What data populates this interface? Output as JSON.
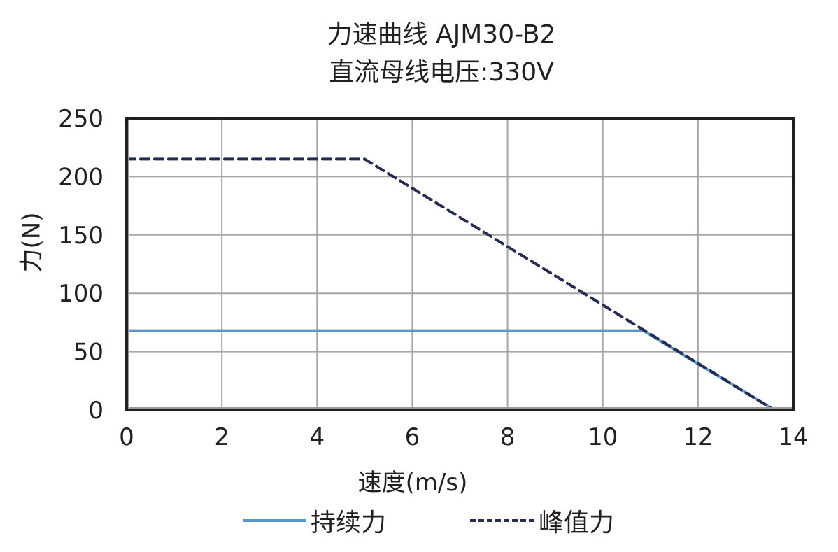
{
  "chart_data": {
    "type": "line",
    "title": "力速曲线 AJM30-B2",
    "subtitle": "直流母线电压:330V",
    "xlabel": "速度(m/s)",
    "ylabel": "力(N)",
    "xlim": [
      0,
      14
    ],
    "ylim": [
      0,
      250
    ],
    "x_ticks": [
      "0",
      "2",
      "4",
      "6",
      "8",
      "10",
      "12",
      "14"
    ],
    "y_ticks": [
      "0",
      "50",
      "100",
      "150",
      "200",
      "250"
    ],
    "grid": true,
    "legend_position": "bottom",
    "series": [
      {
        "name": "持续力",
        "style": "solid",
        "color": "#5b97c9",
        "points": [
          [
            0,
            68
          ],
          [
            10.85,
            68
          ],
          [
            13.6,
            0
          ]
        ]
      },
      {
        "name": "峰值力",
        "style": "dashed",
        "color": "#262b52",
        "points": [
          [
            0,
            215
          ],
          [
            5.0,
            215
          ],
          [
            13.6,
            0
          ]
        ]
      }
    ]
  },
  "legend": {
    "continuous_label": "持续力",
    "peak_label": "峰值力"
  }
}
